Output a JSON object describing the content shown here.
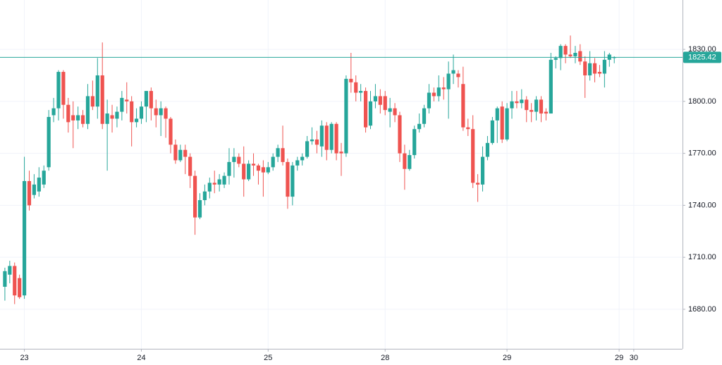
{
  "chart_data": {
    "type": "candlestick",
    "up_color": "#26a69a",
    "down_color": "#ef5350",
    "grid": true,
    "last_price": 1825.42,
    "last_price_color": "#26a69a",
    "ylim": [
      1657.2,
      1858.5
    ],
    "yticks": [
      {
        "value": 1680,
        "label": "1680.00"
      },
      {
        "value": 1710,
        "label": "1710.00"
      },
      {
        "value": 1740,
        "label": "1740.00"
      },
      {
        "value": 1770,
        "label": "1770.00"
      },
      {
        "value": 1800,
        "label": "1800.00"
      },
      {
        "value": 1830,
        "label": "1830.00"
      }
    ],
    "xlim": [
      -5,
      135
    ],
    "xticks": [
      {
        "value": 0,
        "label": "23"
      },
      {
        "value": 24,
        "label": "24"
      },
      {
        "value": 50,
        "label": "25"
      },
      {
        "value": 74,
        "label": "28"
      },
      {
        "value": 99,
        "label": "29"
      },
      {
        "value": 122,
        "label": "29"
      },
      {
        "value": 125,
        "label": "30"
      }
    ],
    "x": [
      -4,
      -3,
      -2,
      -1,
      0,
      1,
      2,
      3,
      4,
      5,
      6,
      7,
      8,
      9,
      10,
      11,
      12,
      13,
      14,
      15,
      16,
      17,
      18,
      19,
      20,
      21,
      22,
      23,
      24,
      25,
      26,
      27,
      28,
      29,
      30,
      31,
      32,
      33,
      34,
      35,
      36,
      37,
      38,
      39,
      40,
      41,
      42,
      43,
      44,
      45,
      46,
      47,
      48,
      49,
      50,
      51,
      52,
      53,
      54,
      55,
      56,
      57,
      58,
      59,
      60,
      61,
      62,
      63,
      64,
      65,
      66,
      67,
      68,
      69,
      70,
      71,
      72,
      73,
      74,
      75,
      76,
      77,
      78,
      79,
      80,
      81,
      82,
      83,
      84,
      85,
      86,
      87,
      88,
      89,
      90,
      91,
      92,
      93,
      94,
      95,
      96,
      97,
      98,
      99,
      100,
      101,
      102,
      103,
      104,
      105,
      106,
      107,
      108,
      109,
      110,
      111,
      112,
      113,
      114,
      115,
      116,
      117,
      118,
      119,
      120,
      121
    ],
    "open": [
      1693,
      1700,
      1705,
      1698,
      1688,
      1754,
      1746,
      1748,
      1752,
      1762,
      1792,
      1796,
      1817,
      1798,
      1792,
      1789,
      1792,
      1787,
      1803,
      1797,
      1815,
      1787,
      1792,
      1790,
      1794,
      1801,
      1800,
      1788,
      1790,
      1797,
      1806,
      1796,
      1792,
      1796,
      1790,
      1775,
      1766,
      1772,
      1768,
      1757,
      1733,
      1743,
      1748,
      1753,
      1752,
      1752,
      1757,
      1765,
      1768,
      1764,
      1755,
      1764,
      1763,
      1762,
      1759,
      1762,
      1768,
      1773,
      1765,
      1745,
      1763,
      1766,
      1768,
      1777,
      1778,
      1774,
      1786,
      1772,
      1787,
      1771,
      1770,
      1813,
      1811,
      1805,
      1806,
      1786,
      1800,
      1803,
      1803,
      1794,
      1796,
      1792,
      1770,
      1761,
      1769,
      1784,
      1787,
      1796,
      1805,
      1803,
      1808,
      1807,
      1816,
      1816,
      1810,
      1785,
      1784,
      1753,
      1752,
      1768,
      1776,
      1789,
      1797,
      1778,
      1796,
      1800,
      1799,
      1801,
      1795,
      1794,
      1801,
      1794,
      1793,
      1824,
      1825,
      1832,
      1827,
      1826,
      1829,
      1823,
      1815,
      1822,
      1817,
      1816,
      1824,
      1825
    ],
    "high": [
      1704,
      1708,
      1707,
      1700,
      1768,
      1760,
      1758,
      1762,
      1763,
      1795,
      1802,
      1818,
      1818,
      1802,
      1800,
      1797,
      1795,
      1810,
      1812,
      1825,
      1834,
      1801,
      1798,
      1797,
      1806,
      1811,
      1803,
      1796,
      1800,
      1806,
      1808,
      1801,
      1800,
      1797,
      1791,
      1778,
      1775,
      1775,
      1770,
      1760,
      1747,
      1752,
      1756,
      1760,
      1758,
      1759,
      1773,
      1773,
      1770,
      1774,
      1766,
      1770,
      1764,
      1766,
      1765,
      1770,
      1775,
      1786,
      1767,
      1765,
      1768,
      1770,
      1780,
      1785,
      1783,
      1789,
      1788,
      1788,
      1788,
      1776,
      1815,
      1828,
      1815,
      1810,
      1808,
      1806,
      1810,
      1807,
      1806,
      1802,
      1799,
      1794,
      1775,
      1772,
      1786,
      1793,
      1798,
      1810,
      1808,
      1815,
      1814,
      1823,
      1827,
      1818,
      1820,
      1790,
      1792,
      1758,
      1774,
      1780,
      1791,
      1797,
      1800,
      1799,
      1806,
      1806,
      1807,
      1803,
      1799,
      1803,
      1803,
      1796,
      1828,
      1826,
      1833,
      1833,
      1838,
      1832,
      1833,
      1826,
      1829,
      1825,
      1821,
      1829,
      1828,
      1826
    ],
    "low": [
      1685,
      1695,
      1683,
      1686,
      1686,
      1737,
      1744,
      1745,
      1750,
      1760,
      1788,
      1789,
      1790,
      1782,
      1773,
      1784,
      1785,
      1784,
      1795,
      1790,
      1784,
      1760,
      1782,
      1785,
      1789,
      1793,
      1774,
      1785,
      1787,
      1788,
      1789,
      1785,
      1780,
      1779,
      1770,
      1764,
      1765,
      1758,
      1750,
      1723,
      1732,
      1740,
      1744,
      1747,
      1748,
      1750,
      1752,
      1756,
      1762,
      1745,
      1754,
      1757,
      1752,
      1745,
      1758,
      1760,
      1765,
      1763,
      1738,
      1740,
      1760,
      1763,
      1767,
      1775,
      1770,
      1768,
      1766,
      1770,
      1766,
      1757,
      1768,
      1805,
      1800,
      1800,
      1782,
      1784,
      1796,
      1793,
      1792,
      1785,
      1788,
      1765,
      1749,
      1760,
      1767,
      1782,
      1785,
      1793,
      1800,
      1800,
      1801,
      1790,
      1810,
      1808,
      1783,
      1780,
      1750,
      1742,
      1748,
      1766,
      1775,
      1776,
      1776,
      1777,
      1790,
      1796,
      1796,
      1788,
      1788,
      1789,
      1788,
      1789,
      1793,
      1819,
      1818,
      1822,
      1825,
      1822,
      1821,
      1802,
      1812,
      1811,
      1814,
      1808,
      1820,
      1822
    ],
    "close": [
      1702,
      1705,
      1688,
      1687,
      1754,
      1740,
      1752,
      1756,
      1760,
      1791,
      1796,
      1817,
      1798,
      1788,
      1789,
      1792,
      1787,
      1803,
      1797,
      1815,
      1787,
      1793,
      1790,
      1794,
      1802,
      1800,
      1788,
      1790,
      1797,
      1806,
      1796,
      1792,
      1796,
      1790,
      1775,
      1766,
      1772,
      1768,
      1757,
      1733,
      1743,
      1748,
      1753,
      1752,
      1755,
      1757,
      1765,
      1768,
      1764,
      1755,
      1764,
      1763,
      1760,
      1759,
      1762,
      1768,
      1773,
      1765,
      1745,
      1763,
      1766,
      1768,
      1777,
      1778,
      1775,
      1786,
      1772,
      1787,
      1770,
      1770,
      1813,
      1811,
      1805,
      1806,
      1785,
      1800,
      1803,
      1798,
      1795,
      1796,
      1792,
      1770,
      1761,
      1769,
      1784,
      1787,
      1796,
      1805,
      1803,
      1808,
      1807,
      1816,
      1818,
      1814,
      1785,
      1784,
      1753,
      1752,
      1768,
      1776,
      1789,
      1796,
      1778,
      1796,
      1800,
      1799,
      1801,
      1795,
      1794,
      1801,
      1793,
      1793,
      1824,
      1825,
      1832,
      1827,
      1826,
      1828,
      1823,
      1815,
      1822,
      1816,
      1816,
      1824,
      1827,
      1825.42
    ]
  }
}
